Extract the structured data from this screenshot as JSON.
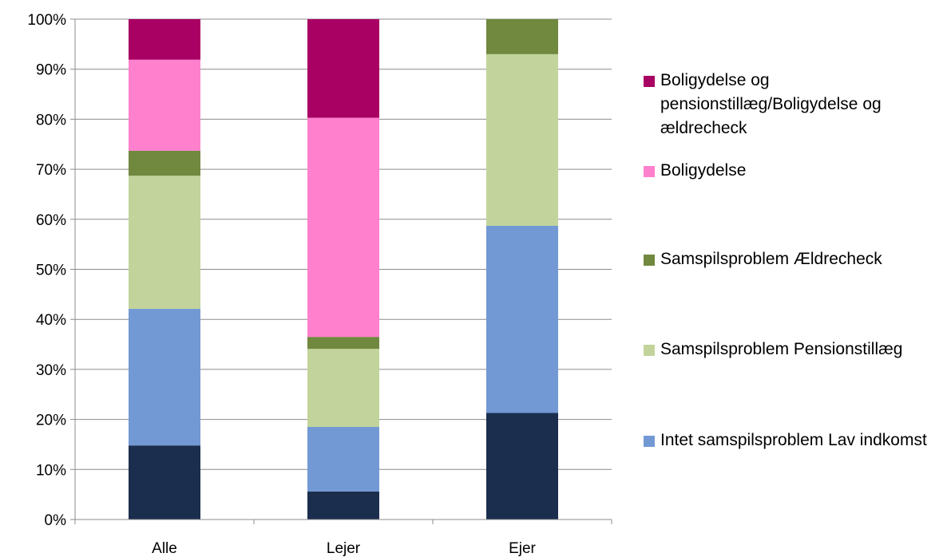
{
  "chart_data": {
    "type": "bar",
    "stacked": true,
    "percent_axis": true,
    "categories": [
      "Alle",
      "Lejer",
      "Ejer"
    ],
    "ylim": [
      0,
      100
    ],
    "y_ticks": [
      "0%",
      "10%",
      "20%",
      "30%",
      "40%",
      "50%",
      "60%",
      "70%",
      "80%",
      "90%",
      "100%"
    ],
    "grid": true,
    "legend_position": "right",
    "series": [
      {
        "name": "",
        "color": "#1b2e4e",
        "values": [
          14.8,
          5.6,
          21.3
        ]
      },
      {
        "name": "Intet samspilsproblem Lav indkomst",
        "color": "#7299d4",
        "values": [
          27.3,
          12.9,
          37.4
        ]
      },
      {
        "name": "Samspilsproblem Pensionstillæg",
        "color": "#c2d49b",
        "values": [
          26.6,
          15.6,
          34.3
        ]
      },
      {
        "name": "Samspilsproblem Ældrecheck",
        "color": "#71883f",
        "values": [
          5.0,
          2.4,
          7.0
        ]
      },
      {
        "name": "Boligydelse",
        "color": "#ff80cc",
        "values": [
          18.2,
          43.8,
          0
        ]
      },
      {
        "name": "Boligydelse og pensionstillæg/Boligydelse og ældrecheck",
        "color": "#a80063",
        "values": [
          8.1,
          19.7,
          0
        ]
      }
    ],
    "legend_order": [
      5,
      4,
      3,
      2,
      1
    ]
  }
}
